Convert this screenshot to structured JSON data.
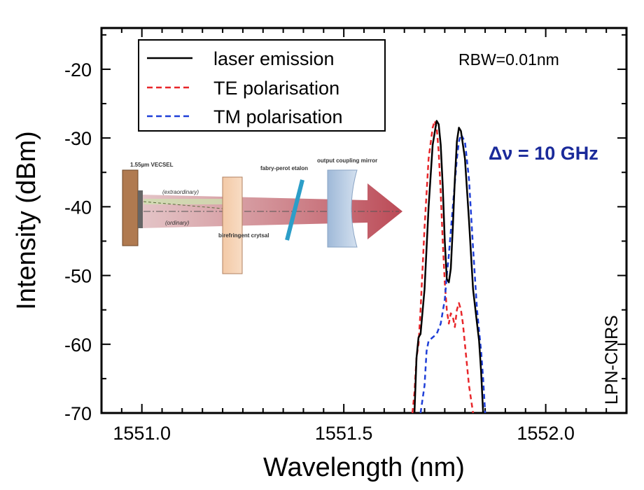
{
  "chart_data": {
    "type": "line",
    "xlabel": "Wavelength (nm)",
    "ylabel": "Intensity (dBm)",
    "xlim": [
      1550.9,
      1552.2
    ],
    "ylim": [
      -70,
      -14
    ],
    "xticks": [
      1551.0,
      1551.5,
      1552.0
    ],
    "xtick_labels": [
      "1551.0",
      "1551.5",
      "1552.0"
    ],
    "yticks": [
      -20,
      -30,
      -40,
      -50,
      -60,
      -70
    ],
    "ytick_labels": [
      "-20",
      "-30",
      "-40",
      "-50",
      "-60",
      "-70"
    ],
    "legend_position": "top-left",
    "series": [
      {
        "name": "laser emission",
        "color": "#000000",
        "style": "solid",
        "x": [
          1551.675,
          1551.68,
          1551.685,
          1551.69,
          1551.7,
          1551.71,
          1551.72,
          1551.73,
          1551.735,
          1551.74,
          1551.745,
          1551.75,
          1551.755,
          1551.76,
          1551.765,
          1551.77,
          1551.775,
          1551.78,
          1551.785,
          1551.79,
          1551.8,
          1551.81,
          1551.82,
          1551.83,
          1551.835,
          1551.84,
          1551.845
        ],
        "y": [
          -70,
          -62,
          -59,
          -58.5,
          -52,
          -40,
          -31,
          -27.5,
          -28,
          -31,
          -37,
          -45,
          -50.5,
          -51,
          -49,
          -43,
          -36,
          -30.5,
          -28.5,
          -29,
          -33,
          -42,
          -52,
          -57,
          -59.5,
          -64,
          -70
        ]
      },
      {
        "name": "TE polarisation",
        "color": "#e8262a",
        "style": "dashed",
        "x": [
          1551.67,
          1551.675,
          1551.68,
          1551.685,
          1551.69,
          1551.7,
          1551.71,
          1551.72,
          1551.725,
          1551.73,
          1551.735,
          1551.74,
          1551.745,
          1551.75,
          1551.755,
          1551.76,
          1551.765,
          1551.77,
          1551.775,
          1551.78,
          1551.785,
          1551.79,
          1551.795,
          1551.8,
          1551.81,
          1551.82
        ],
        "y": [
          -70,
          -67,
          -62,
          -60,
          -55,
          -43,
          -33,
          -28.5,
          -27.5,
          -28.5,
          -32,
          -38,
          -45,
          -51,
          -55,
          -57,
          -55.5,
          -56,
          -57.5,
          -55,
          -54,
          -55,
          -57,
          -60,
          -66,
          -70
        ]
      },
      {
        "name": "TM polarisation",
        "color": "#1f3fd8",
        "style": "dashed",
        "x": [
          1551.69,
          1551.7,
          1551.705,
          1551.71,
          1551.72,
          1551.73,
          1551.74,
          1551.75,
          1551.755,
          1551.76,
          1551.77,
          1551.78,
          1551.785,
          1551.79,
          1551.8,
          1551.81,
          1551.82,
          1551.83,
          1551.835,
          1551.84,
          1551.845,
          1551.85
        ],
        "y": [
          -70,
          -66,
          -61,
          -59.5,
          -59,
          -58.5,
          -57,
          -53.5,
          -50,
          -47,
          -40,
          -33,
          -30.5,
          -29.5,
          -30.5,
          -36,
          -46,
          -55,
          -58,
          -61,
          -65,
          -70
        ]
      }
    ],
    "annotations": {
      "rbw": "RBW=0.01nm",
      "delta_nu": "Δν = 10 GHz",
      "watermark": "LPN-CNRS"
    },
    "inset": {
      "labels": {
        "vecsel": "1.55µm VECSEL",
        "extraordinary": "(extraordinary)",
        "ordinary": "(ordinary)",
        "crystal": "birefringent crytsal",
        "etalon": "fabry-perot etalon",
        "mirror": "output coupling mirror"
      }
    }
  },
  "colors": {
    "laser": "#000000",
    "te": "#e8262a",
    "tm": "#1f3fd8",
    "annotation": "#1a2a9a"
  }
}
